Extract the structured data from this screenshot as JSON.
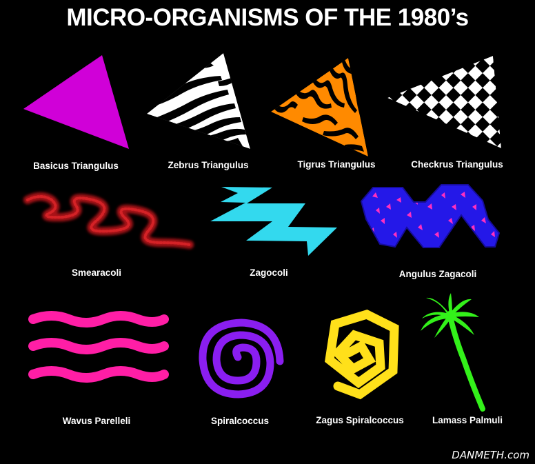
{
  "title": "MICRO-ORGANISMS OF THE 1980’s",
  "organisms": [
    {
      "name": "Basicus Triangulus",
      "color": "#d000d8"
    },
    {
      "name": "Zebrus Triangulus",
      "color": "#ffffff"
    },
    {
      "name": "Tigrus Triangulus",
      "color": "#ff8a00"
    },
    {
      "name": "Checkrus Triangulus",
      "color": "#ffffff"
    },
    {
      "name": "Smearacoli",
      "color": "#c8161b"
    },
    {
      "name": "Zagocoli",
      "color": "#33d9ee"
    },
    {
      "name": "Angulus Zagacoli",
      "color": "#2418e8"
    },
    {
      "name": "Wavus Parelleli",
      "color": "#ff1ea6"
    },
    {
      "name": "Spiralcoccus",
      "color": "#8a1ef0"
    },
    {
      "name": "Zagus Spiralcoccus",
      "color": "#ffe01a"
    },
    {
      "name": "Lamass Palmuli",
      "color": "#33f11a"
    }
  ],
  "signature": "DANMETH.com"
}
